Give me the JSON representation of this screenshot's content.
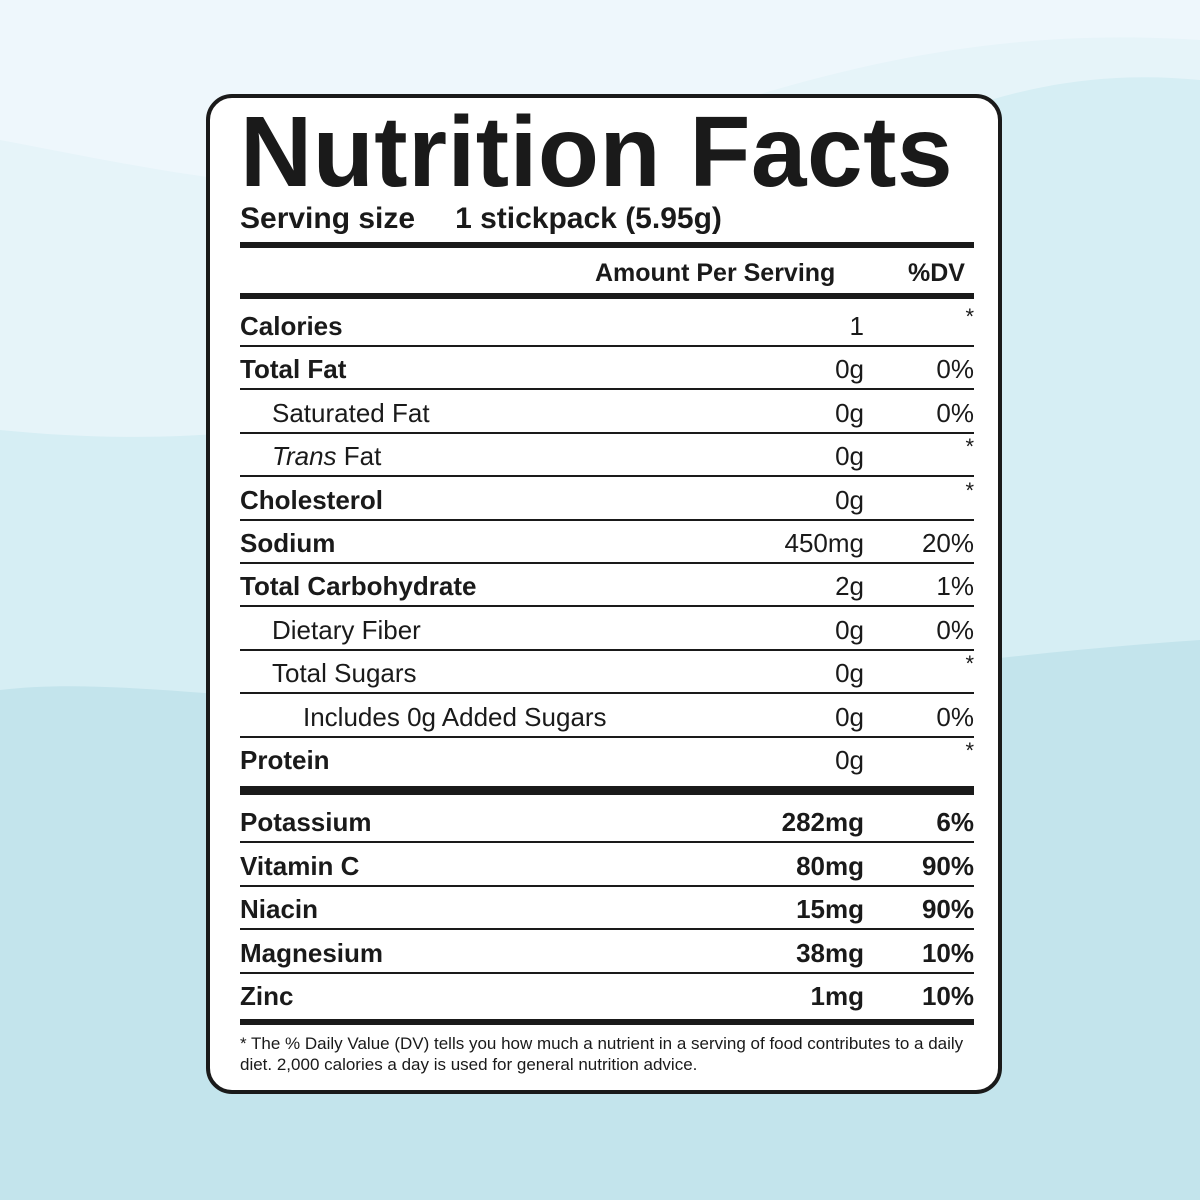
{
  "title": "Nutrition Facts",
  "serving": {
    "label": "Serving size",
    "value": "1 stickpack (5.95g)"
  },
  "columns": {
    "amount": "Amount Per Serving",
    "dv": "%DV"
  },
  "rows": [
    {
      "name": "Calories",
      "amount": "1",
      "dv": "*",
      "bold": true,
      "indent": 0
    },
    {
      "name": "Total Fat",
      "amount": "0g",
      "dv": "0%",
      "bold": true,
      "indent": 0
    },
    {
      "name": "Saturated Fat",
      "amount": "0g",
      "dv": "0%",
      "bold": false,
      "indent": 1
    },
    {
      "name_italic": "Trans",
      "name": " Fat",
      "amount": "0g",
      "dv": "*",
      "bold": false,
      "indent": 1
    },
    {
      "name": "Cholesterol",
      "amount": "0g",
      "dv": "*",
      "bold": true,
      "indent": 0
    },
    {
      "name": "Sodium",
      "amount": "450mg",
      "dv": "20%",
      "bold": true,
      "indent": 0
    },
    {
      "name": "Total Carbohydrate",
      "amount": "2g",
      "dv": "1%",
      "bold": true,
      "indent": 0
    },
    {
      "name": "Dietary Fiber",
      "amount": "0g",
      "dv": "0%",
      "bold": false,
      "indent": 1
    },
    {
      "name": "Total Sugars",
      "amount": "0g",
      "dv": "*",
      "bold": false,
      "indent": 1
    },
    {
      "name": "Includes 0g Added Sugars",
      "amount": "0g",
      "dv": "0%",
      "bold": false,
      "indent": 2
    },
    {
      "name": "Protein",
      "amount": "0g",
      "dv": "*",
      "bold": true,
      "indent": 0
    }
  ],
  "minerals": [
    {
      "name": "Potassium",
      "amount": "282mg",
      "dv": "6%"
    },
    {
      "name": "Vitamin C",
      "amount": "80mg",
      "dv": "90%"
    },
    {
      "name": "Niacin",
      "amount": "15mg",
      "dv": "90%"
    },
    {
      "name": "Magnesium",
      "amount": "38mg",
      "dv": "10%"
    },
    {
      "name": "Zinc",
      "amount": "1mg",
      "dv": "10%"
    }
  ],
  "footnote": "* The % Daily Value (DV) tells you how much a nutrient in a serving of food contributes to a daily diet. 2,000 calories a day is used for general nutrition advice.",
  "colors": {
    "ink": "#1a1a1a",
    "background": "#c3e4ec",
    "panel": "#ffffff"
  }
}
